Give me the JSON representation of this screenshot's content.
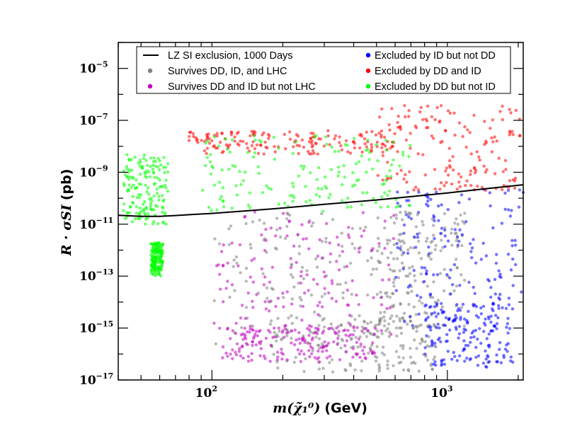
{
  "chart_data": {
    "type": "scatter",
    "x_scale": "log",
    "y_scale": "log",
    "xlim": [
      40,
      2100
    ],
    "ylim": [
      1e-17,
      0.0001
    ],
    "xlabel": {
      "math": "m(χ̃₁⁰)",
      "unit": "(GeV)"
    },
    "ylabel": {
      "math": "R · σSI",
      "unit": "(pb)"
    },
    "x_ticks": [
      {
        "value": 100,
        "base": "10",
        "exp": "2"
      },
      {
        "value": 1000,
        "base": "10",
        "exp": "3"
      }
    ],
    "y_ticks": [
      {
        "value": 1e-05,
        "base": "10",
        "exp": "−5"
      },
      {
        "value": 1e-07,
        "base": "10",
        "exp": "−7"
      },
      {
        "value": 1e-09,
        "base": "10",
        "exp": "−9"
      },
      {
        "value": 1e-11,
        "base": "10",
        "exp": "−11"
      },
      {
        "value": 1e-13,
        "base": "10",
        "exp": "−13"
      },
      {
        "value": 1e-15,
        "base": "10",
        "exp": "−15"
      },
      {
        "value": 1e-17,
        "base": "10",
        "exp": "−17"
      }
    ],
    "legend_position": "top",
    "exclusion_curve": {
      "name": "LZ SI exclusion, 1000 Days",
      "color": "#000000",
      "points": [
        {
          "x": 40,
          "y": 2.2e-11
        },
        {
          "x": 50,
          "y": 2e-11
        },
        {
          "x": 60,
          "y": 2e-11
        },
        {
          "x": 70,
          "y": 2.15e-11
        },
        {
          "x": 85,
          "y": 2.4e-11
        },
        {
          "x": 100,
          "y": 2.6e-11
        },
        {
          "x": 150,
          "y": 3.4e-11
        },
        {
          "x": 200,
          "y": 4.2e-11
        },
        {
          "x": 300,
          "y": 5.8e-11
        },
        {
          "x": 500,
          "y": 8.6e-11
        },
        {
          "x": 700,
          "y": 1.15e-10
        },
        {
          "x": 1000,
          "y": 1.6e-10
        },
        {
          "x": 1500,
          "y": 2.4e-10
        },
        {
          "x": 2100,
          "y": 3.3e-10
        }
      ]
    },
    "series": [
      {
        "name": "Survives DD, ID, and LHC",
        "color": "#808080",
        "regions": [
          {
            "x": [
              100,
              650
            ],
            "y": [
              2e-16,
              4e-11
            ]
          },
          {
            "x": [
              180,
              900
            ],
            "y": [
              2e-17,
              3e-15
            ]
          },
          {
            "x": [
              500,
              1200
            ],
            "y": [
              1e-15,
              3e-11
            ]
          }
        ]
      },
      {
        "name": "Survives DD and ID but not LHC",
        "color": "#c000c0",
        "regions": [
          {
            "x": [
              100,
              600
            ],
            "y": [
              5e-16,
              3e-11
            ]
          },
          {
            "x": [
              110,
              500
            ],
            "y": [
              5e-17,
              1e-15
            ]
          }
        ]
      },
      {
        "name": "Excluded by ID but not DD",
        "color": "#0000ff",
        "regions": [
          {
            "x": [
              600,
              2100
            ],
            "y": [
              1e-15,
              2.5e-10
            ]
          },
          {
            "x": [
              800,
              1900
            ],
            "y": [
              3e-17,
              1e-14
            ]
          }
        ]
      },
      {
        "name": "Excluded by DD and ID",
        "color": "#ff0000",
        "regions": [
          {
            "x": [
              80,
              600
            ],
            "y": [
              5e-09,
              4e-08
            ]
          },
          {
            "x": [
              500,
              2100
            ],
            "y": [
              2e-10,
              4e-07
            ]
          }
        ]
      },
      {
        "name": "Excluded by DD but not ID",
        "color": "#00ff00",
        "regions": [
          {
            "x": [
              90,
              700
            ],
            "y": [
              3e-11,
              3e-08
            ]
          },
          {
            "x": [
              42,
              65
            ],
            "y": [
              1e-11,
              5e-09
            ]
          },
          {
            "x": [
              55,
              62
            ],
            "y": [
              1e-13,
              2e-12
            ]
          }
        ]
      }
    ]
  },
  "legend": {
    "items": [
      {
        "label": "LZ SI exclusion, 1000 Days",
        "kind": "line",
        "color": "#000000"
      },
      {
        "label": "Survives DD, ID, and LHC",
        "kind": "dot",
        "color": "#808080"
      },
      {
        "label": "Survives DD and ID but not LHC",
        "kind": "dot",
        "color": "#c000c0"
      },
      {
        "label": "Excluded by ID but not DD",
        "kind": "dot",
        "color": "#0000ff"
      },
      {
        "label": "Excluded by DD and ID",
        "kind": "dot",
        "color": "#ff0000"
      },
      {
        "label": "Excluded by DD but not ID",
        "kind": "dot",
        "color": "#00ff00"
      }
    ]
  }
}
